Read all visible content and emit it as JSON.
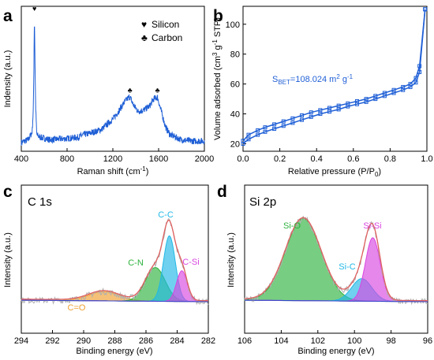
{
  "chart_data": [
    {
      "panel_letter": "a",
      "type": "line",
      "xlabel": "Raman shift (cm",
      "xlabel_sup": "-1",
      "xlabel_end": ")",
      "ylabel": "Indensity (a.u.)",
      "xlim": [
        400,
        2000
      ],
      "xticks": [
        400,
        800,
        1200,
        1600,
        2000
      ],
      "yticks_shown": false,
      "legend": {
        "placement": "top-right",
        "entries": [
          {
            "symbol": "♥",
            "label": "Silicon"
          },
          {
            "symbol": "♣",
            "label": "Carbon"
          }
        ]
      },
      "peak_markers": [
        {
          "symbol": "♥",
          "x": 515
        },
        {
          "symbol": "♣",
          "x": 1350
        },
        {
          "symbol": "♣",
          "x": 1590
        }
      ],
      "series": [
        {
          "color": "#1f5fd6",
          "x": [
            400,
            460,
            495,
            505,
            510,
            515,
            520,
            525,
            535,
            560,
            650,
            800,
            900,
            940,
            1000,
            1100,
            1200,
            1250,
            1300,
            1340,
            1350,
            1380,
            1420,
            1470,
            1520,
            1560,
            1590,
            1620,
            1660,
            1700,
            1800,
            1900,
            2000
          ],
          "y": [
            0.02,
            0.04,
            0.1,
            0.28,
            0.62,
            1.0,
            0.62,
            0.3,
            0.08,
            0.06,
            0.04,
            0.05,
            0.06,
            0.08,
            0.09,
            0.12,
            0.2,
            0.26,
            0.33,
            0.37,
            0.37,
            0.31,
            0.26,
            0.27,
            0.3,
            0.36,
            0.37,
            0.27,
            0.14,
            0.08,
            0.04,
            0.03,
            0.03
          ]
        }
      ]
    },
    {
      "panel_letter": "b",
      "type": "line",
      "xlabel": "Relative pressure (P/P",
      "xlabel_sub": "0",
      "xlabel_end": ")",
      "ylabel": "Volume adsorbed (cm",
      "ylabel_sup1": "3",
      "ylabel_mid": " g",
      "ylabel_sup2": "-1",
      "ylabel_end": " STP)",
      "xlim": [
        0.0,
        1.0
      ],
      "ylim": [
        15,
        112
      ],
      "xticks": [
        0.0,
        0.2,
        0.4,
        0.6,
        0.8,
        1.0
      ],
      "yticks": [
        20,
        40,
        60,
        80,
        100
      ],
      "annotation": {
        "prefix": "S",
        "sub": "BET",
        "value": "=108.024 m",
        "sup1": "2",
        "g": " g",
        "sup2": "-1"
      },
      "series": [
        {
          "branch": "adsorption",
          "color": "#1f5fd6",
          "x": [
            0.0,
            0.03,
            0.08,
            0.12,
            0.17,
            0.22,
            0.27,
            0.32,
            0.37,
            0.42,
            0.47,
            0.52,
            0.57,
            0.62,
            0.67,
            0.72,
            0.77,
            0.82,
            0.87,
            0.91,
            0.94,
            0.96,
            0.99
          ],
          "y": [
            20,
            23,
            26,
            28,
            30,
            32,
            34,
            36,
            38,
            40,
            41.5,
            43,
            45,
            46.5,
            48,
            50,
            52,
            54,
            56,
            58,
            61,
            68,
            110
          ]
        },
        {
          "branch": "desorption",
          "color": "#1f5fd6",
          "x": [
            0.99,
            0.96,
            0.94,
            0.91,
            0.87,
            0.82,
            0.77,
            0.72,
            0.67,
            0.62,
            0.57,
            0.52,
            0.47,
            0.42,
            0.37,
            0.32,
            0.27,
            0.22,
            0.17,
            0.12,
            0.08,
            0.03,
            0.0
          ],
          "y": [
            110,
            72,
            64,
            60,
            58,
            56,
            54,
            52,
            50,
            48.5,
            47,
            45.5,
            44,
            42.5,
            41,
            39,
            37,
            35,
            33,
            31,
            29,
            26,
            22
          ]
        }
      ]
    },
    {
      "panel_letter": "c",
      "type": "line",
      "title": "C 1s",
      "xlabel": "Binding energy (eV)",
      "ylabel": "Intensity (a.u.)",
      "xlim": [
        294,
        282
      ],
      "x_reversed": true,
      "xticks": [
        294,
        292,
        290,
        288,
        286,
        284,
        282
      ],
      "yticks_shown": false,
      "components": [
        {
          "name": "C=O",
          "center": 288.7,
          "fwhm": 2.3,
          "height": 0.09,
          "color": "#f0a030"
        },
        {
          "name": "C-N",
          "center": 285.4,
          "fwhm": 1.5,
          "height": 0.33,
          "color": "#2eb23e"
        },
        {
          "name": "C-C",
          "center": 284.5,
          "fwhm": 0.9,
          "height": 0.64,
          "color": "#22b8e6"
        },
        {
          "name": "C-Si",
          "center": 283.7,
          "fwhm": 0.8,
          "height": 0.3,
          "color": "#d946e0"
        }
      ],
      "envelope_color": "#e06060",
      "raw_color": "#b0b0b0"
    },
    {
      "panel_letter": "d",
      "type": "line",
      "title": "Si 2p",
      "xlabel": "Binding energy (eV)",
      "ylabel": "Intensity (a.u.)",
      "xlim": [
        106,
        96
      ],
      "x_reversed": true,
      "xticks": [
        106,
        104,
        102,
        100,
        98,
        96
      ],
      "yticks_shown": false,
      "components": [
        {
          "name": "Si-O",
          "center": 102.8,
          "fwhm": 2.3,
          "height": 0.8,
          "color": "#2eb23e"
        },
        {
          "name": "Si-C",
          "center": 99.6,
          "fwhm": 1.3,
          "height": 0.22,
          "color": "#22b8e6"
        },
        {
          "name": "Si-Si",
          "center": 99.0,
          "fwhm": 0.95,
          "height": 0.62,
          "color": "#d946e0"
        }
      ],
      "envelope_color": "#e06060",
      "raw_color": "#b0b0b0"
    }
  ]
}
